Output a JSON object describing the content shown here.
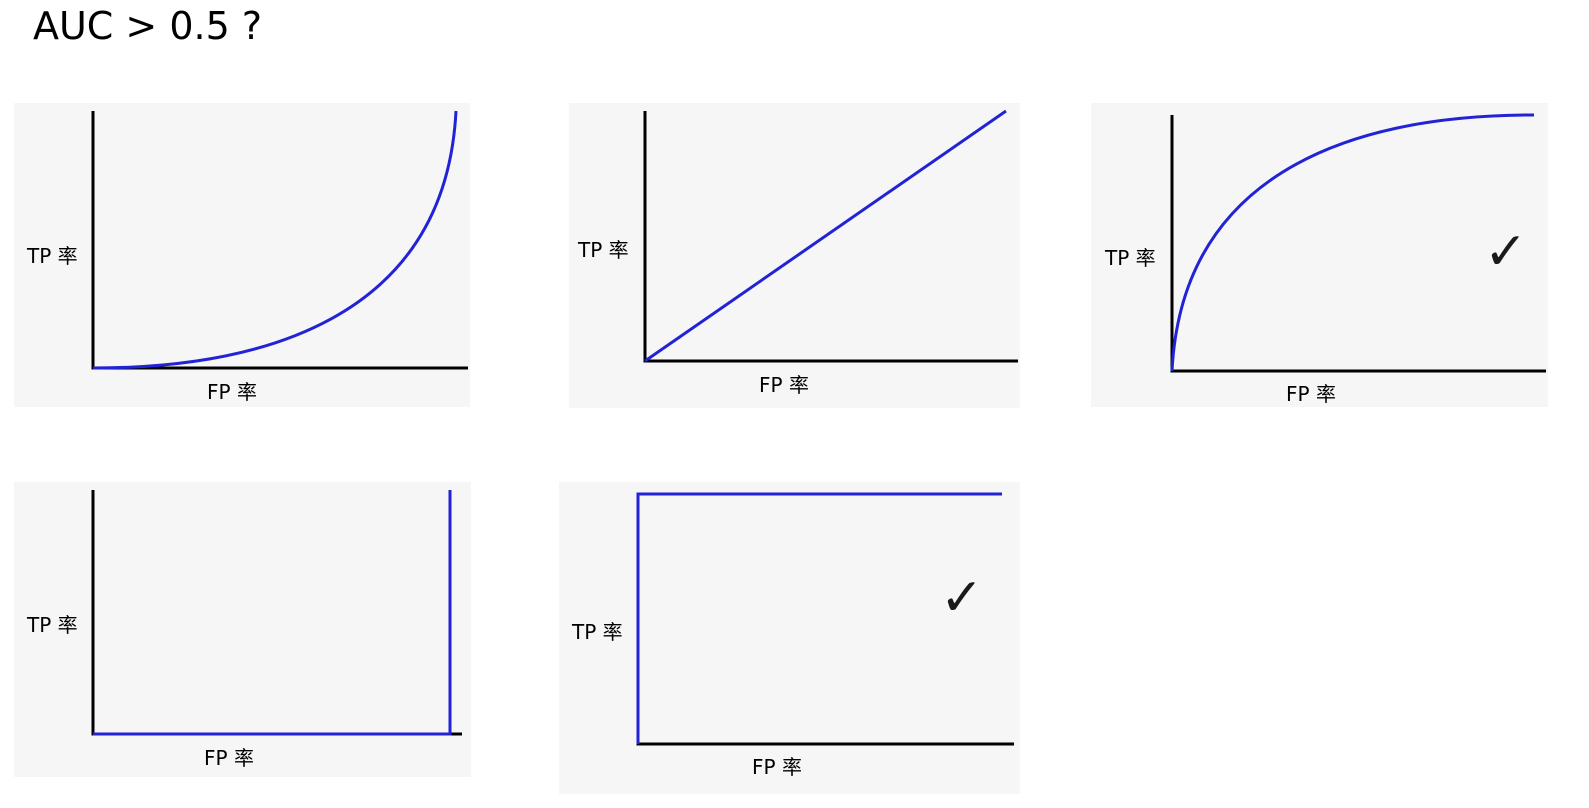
{
  "title": "AUC > 0.5 ?",
  "check_mark": "✓",
  "colors": {
    "curve": "#2323d6",
    "axis": "#000000",
    "panel_bg": "#f6f6f6"
  },
  "chart_data": [
    {
      "type": "line",
      "shape": "convex-low",
      "xlabel": "FP 率",
      "ylabel": "TP 率",
      "xlim": [
        0,
        1
      ],
      "ylim": [
        0,
        1
      ],
      "x": [
        0,
        0.2,
        0.4,
        0.6,
        0.8,
        0.9,
        1
      ],
      "y": [
        0,
        0.04,
        0.12,
        0.26,
        0.5,
        0.72,
        1
      ],
      "marked_correct": false
    },
    {
      "type": "line",
      "shape": "diagonal",
      "xlabel": "FP 率",
      "ylabel": "TP 率",
      "xlim": [
        0,
        1
      ],
      "ylim": [
        0,
        1
      ],
      "x": [
        0,
        1
      ],
      "y": [
        0,
        1
      ],
      "marked_correct": false
    },
    {
      "type": "line",
      "shape": "concave-high",
      "xlabel": "FP 率",
      "ylabel": "TP 率",
      "xlim": [
        0,
        1
      ],
      "ylim": [
        0,
        1
      ],
      "x": [
        0,
        0.1,
        0.2,
        0.4,
        0.6,
        0.8,
        1
      ],
      "y": [
        0,
        0.5,
        0.68,
        0.85,
        0.94,
        0.99,
        1
      ],
      "marked_correct": true
    },
    {
      "type": "line",
      "shape": "worst-step",
      "xlabel": "FP 率",
      "ylabel": "TP 率",
      "xlim": [
        0,
        1
      ],
      "ylim": [
        0,
        1
      ],
      "x": [
        0,
        1,
        1
      ],
      "y": [
        0,
        0,
        1
      ],
      "marked_correct": false
    },
    {
      "type": "line",
      "shape": "perfect-step",
      "xlabel": "FP 率",
      "ylabel": "TP 率",
      "xlim": [
        0,
        1
      ],
      "ylim": [
        0,
        1
      ],
      "x": [
        0,
        0,
        1
      ],
      "y": [
        0,
        1,
        1
      ],
      "marked_correct": true
    }
  ]
}
